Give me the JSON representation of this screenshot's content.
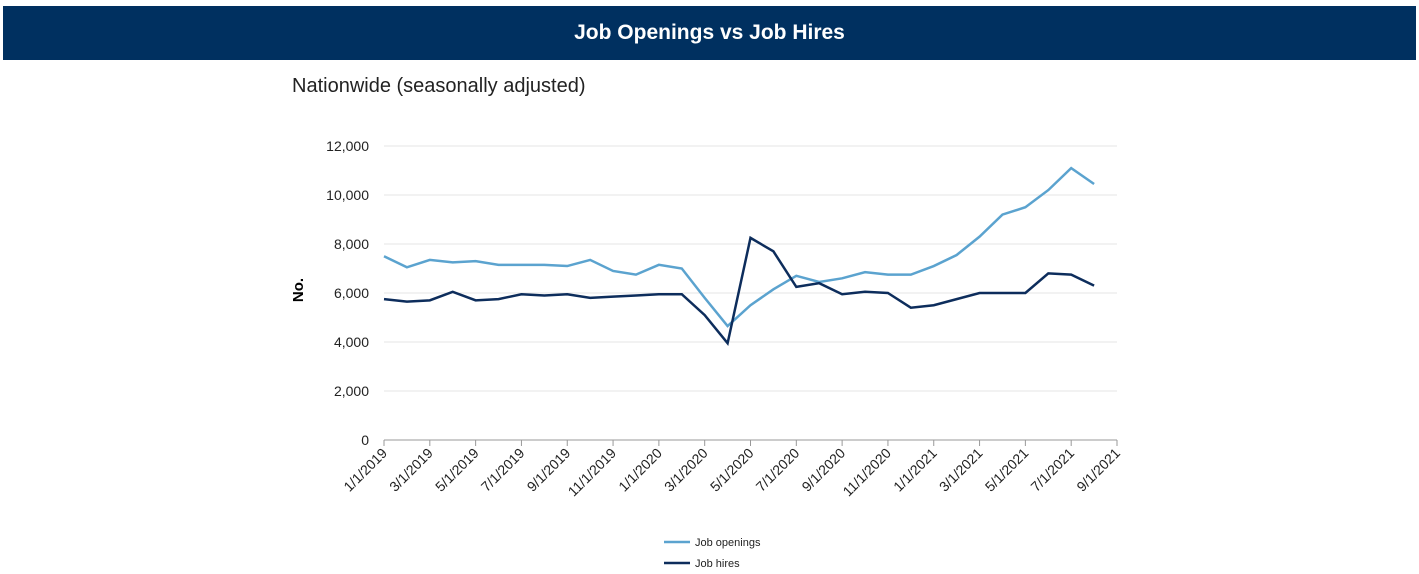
{
  "header": {
    "title": "Job Openings vs Job Hires"
  },
  "chart_data": {
    "type": "line",
    "title": "Nationwide (seasonally adjusted)",
    "y_label": "No.",
    "categories": [
      "1/1/2019",
      null,
      "3/1/2019",
      null,
      "5/1/2019",
      null,
      "7/1/2019",
      null,
      "9/1/2019",
      null,
      "11/1/2019",
      null,
      "1/1/2020",
      null,
      "3/1/2020",
      null,
      "5/1/2020",
      null,
      "7/1/2020",
      null,
      "9/1/2020",
      null,
      "11/1/2020",
      null,
      "1/1/2021",
      null,
      "3/1/2021",
      null,
      "5/1/2021",
      null,
      "7/1/2021",
      null,
      "9/1/2021"
    ],
    "series": [
      {
        "name": "Job openings",
        "color": "#5ba3cf",
        "values": [
          7500,
          7050,
          7350,
          7250,
          7300,
          7150,
          7150,
          7150,
          7100,
          7350,
          6900,
          6750,
          7150,
          7000,
          5800,
          4650,
          5500,
          6150,
          6700,
          6450,
          6600,
          6850,
          6750,
          6750,
          7100,
          7550,
          8300,
          9200,
          9500,
          10200,
          11100,
          10450,
          null
        ]
      },
      {
        "name": "Job hires",
        "color": "#0d2d5c",
        "values": [
          5750,
          5650,
          5700,
          6050,
          5700,
          5750,
          5950,
          5900,
          5950,
          5800,
          5850,
          5900,
          5950,
          5950,
          5100,
          3950,
          8250,
          7700,
          6250,
          6400,
          5950,
          6050,
          6000,
          5400,
          5500,
          5750,
          6000,
          6000,
          6000,
          6800,
          6750,
          6300,
          null
        ]
      }
    ],
    "ylim": [
      0,
      12000
    ],
    "yticks": [
      0,
      {
        "value": 2000,
        "label": "2,000"
      },
      {
        "value": 4000,
        "label": "4,000"
      },
      {
        "value": 6000,
        "label": "6,000"
      },
      {
        "value": 8000,
        "label": "8,000"
      },
      {
        "value": 10000,
        "label": "10,000"
      },
      {
        "value": 12000,
        "label": "12,000"
      }
    ],
    "grid": true
  }
}
